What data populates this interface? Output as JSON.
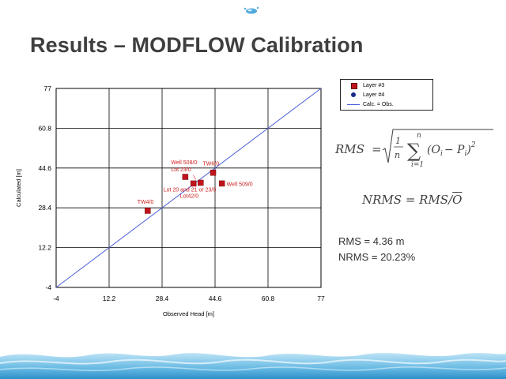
{
  "slide": {
    "title": "Results – MODFLOW Calibration"
  },
  "formulas": {
    "rms_lhs": "RMS",
    "rms_equals": "=",
    "frac_num": "1",
    "frac_den": "n",
    "sum_upper": "n",
    "sum_lower": "i=1",
    "sum_body": "(O",
    "sum_sub_o": "i",
    "sum_minus": "− P",
    "sum_sub_p": "i",
    "sum_close": ")",
    "sum_power": "2",
    "nrms_text": "NRMS = RMS/",
    "nrms_obar": "O"
  },
  "stats": {
    "rms": "RMS = 4.36 m",
    "nrms": "NRMS = 20.23%"
  },
  "colors": {
    "layer3_marker": "#c0141c",
    "label_color": "#cc2222",
    "one_to_one_line": "#4a5fd8",
    "grid": "#000000"
  },
  "chart_data": {
    "type": "scatter",
    "xlabel": "Observed Head [m]",
    "ylabel": "Calculated [m]",
    "xlim": [
      -4,
      77
    ],
    "ylim": [
      -4,
      77
    ],
    "x_ticks": [
      "-4",
      "12.2",
      "28.4",
      "44.6",
      "60.8",
      "77"
    ],
    "y_ticks": [
      "-4",
      "12.2",
      "28.4",
      "44.6",
      "60.8",
      "77"
    ],
    "grid": true,
    "legend_position": "top-right, outside plot",
    "legend": [
      {
        "label": "Layer #3",
        "symbol": "red-square"
      },
      {
        "label": "Layer #4",
        "symbol": "blue-circle"
      },
      {
        "label": "Calc. = Obs.",
        "symbol": "blue-line"
      }
    ],
    "reference_line": {
      "name": "Calc. = Obs.",
      "from": [
        -4,
        -4
      ],
      "to": [
        77,
        77
      ]
    },
    "series": [
      {
        "name": "Layer #3",
        "points": [
          {
            "label": "TW4/0",
            "x": 24.0,
            "y": 27.2
          },
          {
            "label": "Lot 20 and 21 or 23/0",
            "x": 38.0,
            "y": 38.3
          },
          {
            "label": "Lot 23/0",
            "x": 35.5,
            "y": 41.0
          },
          {
            "label": "Lot42/0",
            "x": 40.2,
            "y": 38.6
          },
          {
            "label": "TW6/0",
            "x": 44.0,
            "y": 42.7
          },
          {
            "label": "Well 509/0",
            "x": 46.7,
            "y": 38.3
          }
        ]
      }
    ],
    "annotations": [
      {
        "text": "Well 508/0",
        "x": 35.5,
        "y": 41.0
      }
    ]
  }
}
